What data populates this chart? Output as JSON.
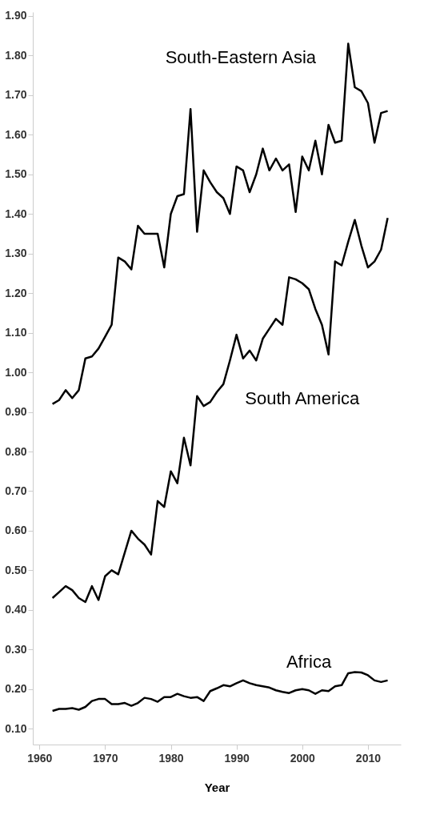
{
  "chart_data": {
    "type": "line",
    "xlabel": "Year",
    "x": [
      1962,
      1963,
      1964,
      1965,
      1966,
      1967,
      1968,
      1969,
      1970,
      1971,
      1972,
      1973,
      1974,
      1975,
      1976,
      1977,
      1978,
      1979,
      1980,
      1981,
      1982,
      1983,
      1984,
      1985,
      1986,
      1987,
      1988,
      1989,
      1990,
      1991,
      1992,
      1993,
      1994,
      1995,
      1996,
      1997,
      1998,
      1999,
      2000,
      2001,
      2002,
      2003,
      2004,
      2005,
      2006,
      2007,
      2008,
      2009,
      2010,
      2011,
      2012,
      2013
    ],
    "series": [
      {
        "name": "South-Eastern Asia",
        "color": "#000000",
        "values": [
          0.92,
          0.93,
          0.955,
          0.935,
          0.955,
          1.035,
          1.04,
          1.06,
          1.09,
          1.12,
          1.29,
          1.28,
          1.26,
          1.37,
          1.35,
          1.35,
          1.35,
          1.265,
          1.4,
          1.445,
          1.45,
          1.665,
          1.355,
          1.51,
          1.48,
          1.455,
          1.44,
          1.4,
          1.52,
          1.51,
          1.455,
          1.5,
          1.565,
          1.51,
          1.54,
          1.51,
          1.525,
          1.405,
          1.545,
          1.51,
          1.585,
          1.5,
          1.625,
          1.58,
          1.585,
          1.83,
          1.72,
          1.71,
          1.68,
          1.58,
          1.655,
          1.66
        ]
      },
      {
        "name": "South America",
        "color": "#000000",
        "values": [
          0.43,
          0.445,
          0.46,
          0.45,
          0.43,
          0.42,
          0.46,
          0.425,
          0.485,
          0.5,
          0.49,
          0.545,
          0.6,
          0.58,
          0.565,
          0.54,
          0.675,
          0.66,
          0.75,
          0.72,
          0.835,
          0.765,
          0.94,
          0.915,
          0.925,
          0.95,
          0.97,
          1.03,
          1.095,
          1.035,
          1.055,
          1.03,
          1.085,
          1.11,
          1.135,
          1.12,
          1.24,
          1.235,
          1.225,
          1.21,
          1.16,
          1.12,
          1.045,
          1.28,
          1.27,
          1.33,
          1.385,
          1.32,
          1.265,
          1.28,
          1.31,
          1.39
        ]
      },
      {
        "name": "Africa",
        "color": "#000000",
        "values": [
          0.145,
          0.15,
          0.15,
          0.152,
          0.148,
          0.155,
          0.17,
          0.175,
          0.175,
          0.162,
          0.162,
          0.165,
          0.158,
          0.165,
          0.178,
          0.175,
          0.168,
          0.18,
          0.18,
          0.188,
          0.182,
          0.178,
          0.18,
          0.17,
          0.195,
          0.202,
          0.21,
          0.207,
          0.215,
          0.222,
          0.215,
          0.21,
          0.207,
          0.204,
          0.197,
          0.193,
          0.19,
          0.197,
          0.2,
          0.197,
          0.188,
          0.197,
          0.195,
          0.207,
          0.21,
          0.24,
          0.243,
          0.242,
          0.235,
          0.222,
          0.218,
          0.222
        ]
      }
    ],
    "xlim": [
      1959,
      2015
    ],
    "xticks": [
      1960,
      1970,
      1980,
      1990,
      2000,
      2010
    ],
    "ylim": [
      0.06,
      1.91
    ],
    "yticks": [
      {
        "value": 0.1,
        "label": "0.10"
      },
      {
        "value": 0.2,
        "label": "0.20"
      },
      {
        "value": 0.3,
        "label": "0.30"
      },
      {
        "value": 0.4,
        "label": "0.40"
      },
      {
        "value": 0.5,
        "label": "0.50"
      },
      {
        "value": 0.6,
        "label": "0.60"
      },
      {
        "value": 0.7,
        "label": "0.70"
      },
      {
        "value": 0.8,
        "label": "0.80"
      },
      {
        "value": 0.9,
        "label": "0.90"
      },
      {
        "value": 1.0,
        "label": "1.00"
      },
      {
        "value": 1.1,
        "label": "1.10"
      },
      {
        "value": 1.2,
        "label": "1.20"
      },
      {
        "value": 1.3,
        "label": "1.30"
      },
      {
        "value": 1.4,
        "label": "1.40"
      },
      {
        "value": 1.5,
        "label": "1.50"
      },
      {
        "value": 1.6,
        "label": "1.60"
      },
      {
        "value": 1.7,
        "label": "1.70"
      },
      {
        "value": 1.8,
        "label": "1.80"
      },
      {
        "value": 1.9,
        "label": "1.90"
      }
    ],
    "grid": false,
    "legend": false,
    "marker": "none",
    "line_style": "solid"
  }
}
